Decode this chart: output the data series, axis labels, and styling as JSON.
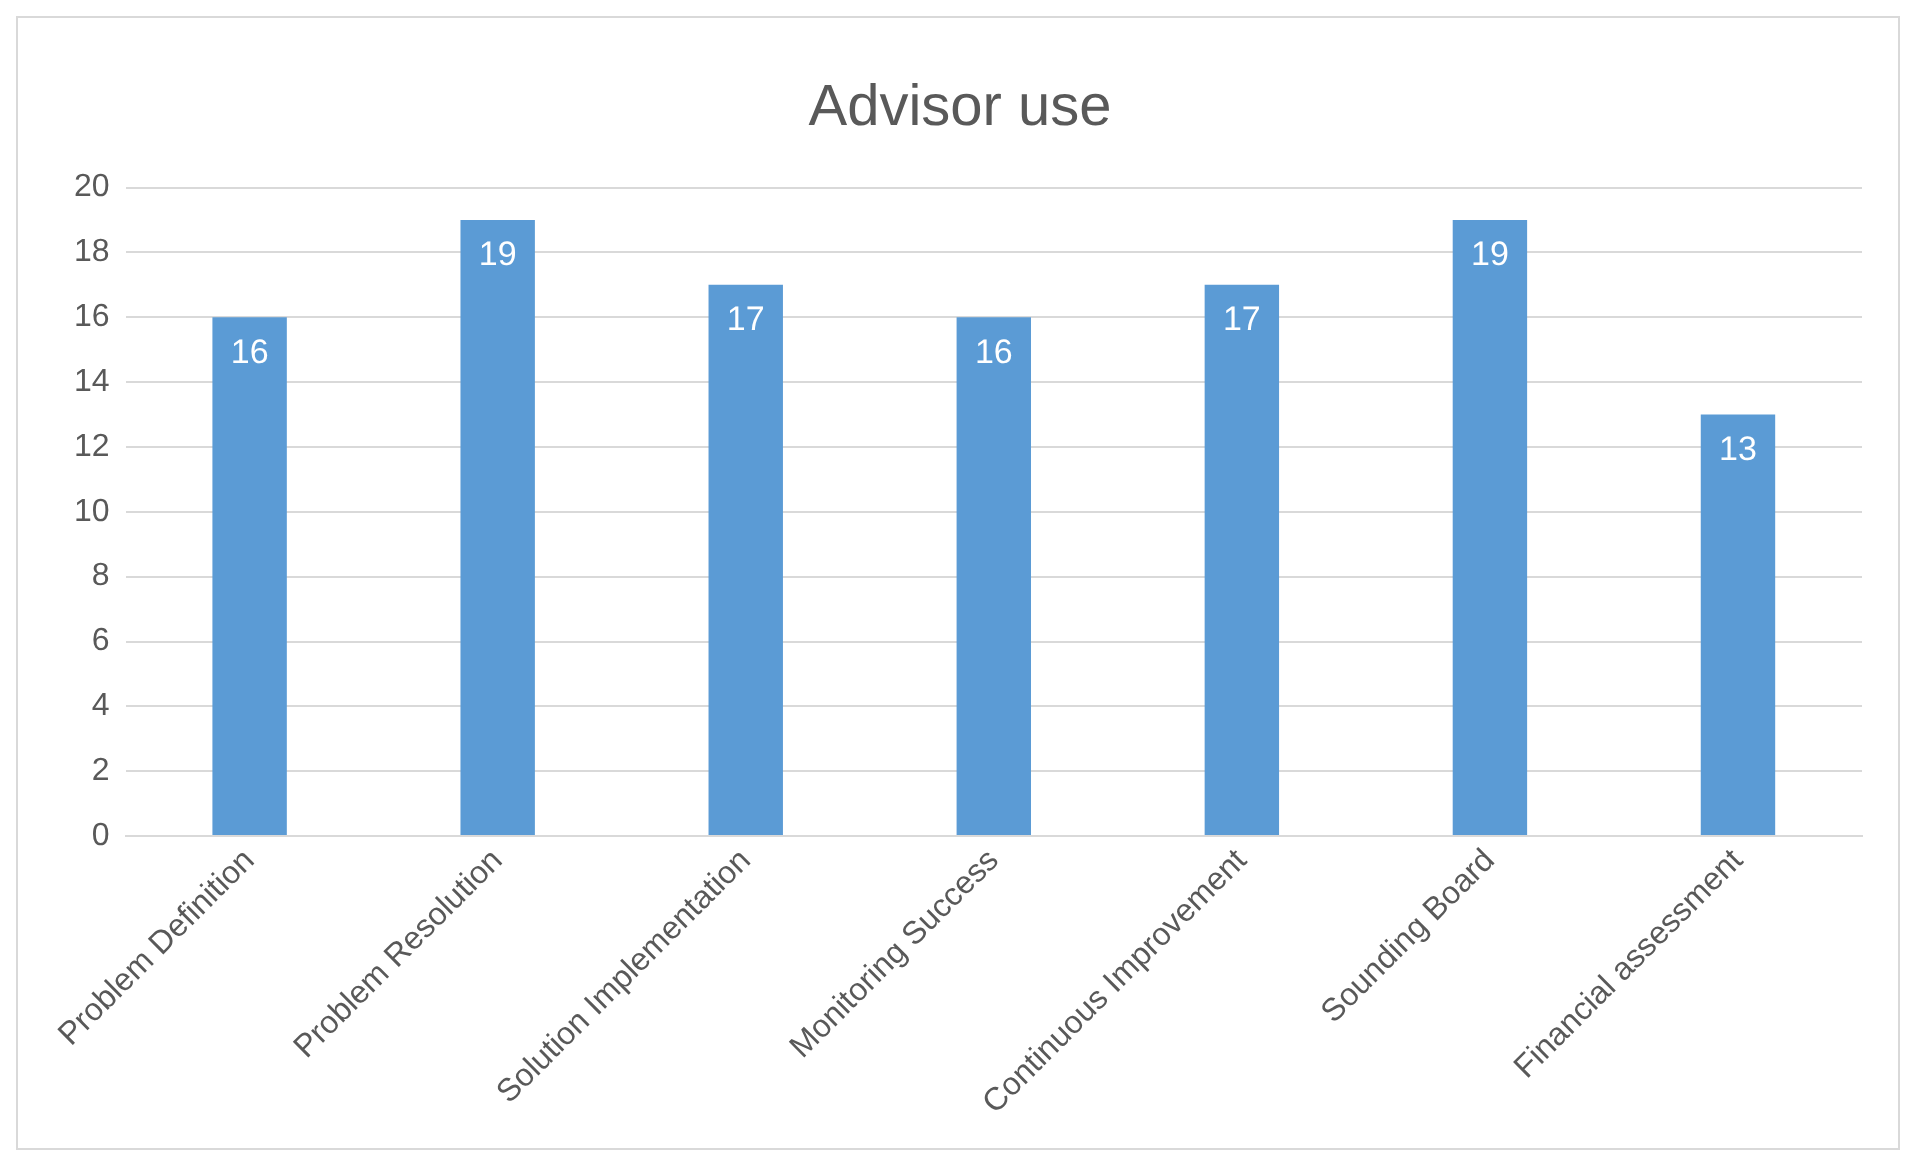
{
  "chart_data": {
    "type": "bar",
    "title": "Advisor use",
    "categories": [
      "Problem Definition",
      "Problem Resolution",
      "Solution Implementation",
      "Monitoring Success",
      "Continuous Improvement",
      "Sounding Board",
      "Financial assessment"
    ],
    "values": [
      16,
      19,
      17,
      16,
      17,
      19,
      13
    ],
    "color": "#5b9bd5",
    "ylim": [
      0,
      20
    ],
    "yticks": [
      0,
      2,
      4,
      6,
      8,
      10,
      12,
      14,
      16,
      18,
      20
    ],
    "grid": "y",
    "data_labels": true
  }
}
